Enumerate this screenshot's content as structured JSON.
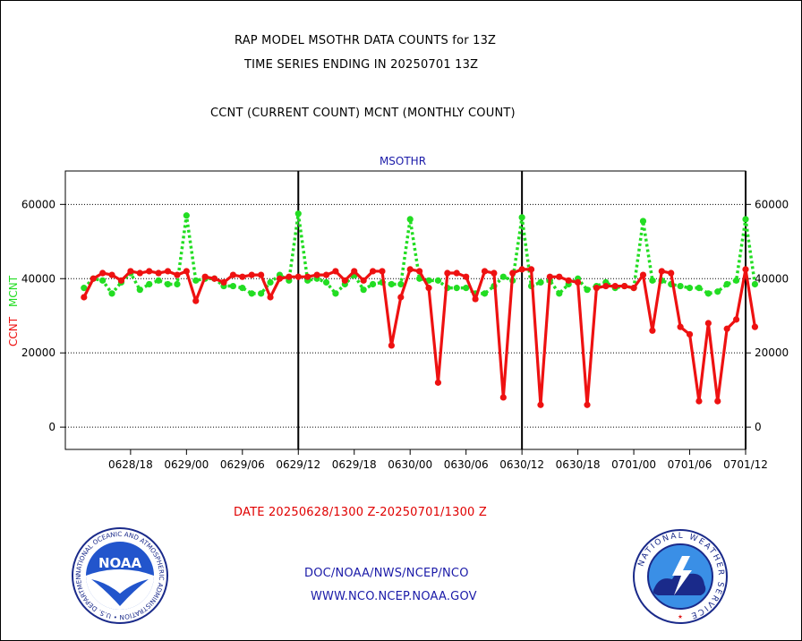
{
  "title_line1": "RAP MODEL MSOTHR DATA COUNTS for 13Z",
  "title_line2": "TIME SERIES ENDING IN 20250701 13Z",
  "title_line3": "CCNT (CURRENT COUNT) MCNT (MONTHLY COUNT)",
  "date_range": "DATE 20250628/1300 Z-20250701/1300 Z",
  "credit_line1": "DOC/NOAA/NWS/NCEP/NCO",
  "credit_line2": "WWW.NCO.NCEP.NOAA.GOV",
  "noaa_logo": {
    "center_text": "NOAA",
    "ring_text": "NATIONAL OCEANIC AND ATMOSPHERIC ADMINISTRATION • U.S. DEPARTMENT OF COMMERCE •"
  },
  "nws_logo": {
    "ring_text": "NATIONAL WEATHER SERVICE"
  },
  "colors": {
    "ccnt": "#ee1111",
    "mcnt": "#22dd22",
    "panel_label": "#1a1aa8",
    "grid": "#000000"
  },
  "chart_data": {
    "type": "line",
    "panel_label": "MSOTHR",
    "ylabel_left": "CCNT",
    "ylabel_left_second": "MCNT",
    "yticks": [
      "0",
      "20000",
      "40000",
      "60000"
    ],
    "ylim": [
      -6000,
      69000
    ],
    "xticks": [
      "0628/18",
      "0629/00",
      "0629/06",
      "0629/12",
      "0629/18",
      "0630/00",
      "0630/06",
      "0630/12",
      "0630/18",
      "0701/00",
      "0701/06",
      "0701/12"
    ],
    "xlim_hours": [
      -2,
      71
    ],
    "x_start": "2025-06-28 13Z",
    "grid": "horizontal dotted at 0, 20000, 40000, 60000; vertical lines at each 12Z",
    "vertical_lines_hours": [
      23,
      47,
      71
    ],
    "series": [
      {
        "name": "CCNT",
        "color": "#ee1111",
        "style": "solid",
        "values": [
          35000,
          40000,
          41500,
          41000,
          39500,
          42000,
          41500,
          42000,
          41500,
          42000,
          41000,
          42000,
          34000,
          40500,
          40000,
          39000,
          41000,
          40500,
          41000,
          41000,
          35000,
          40000,
          40500,
          40500,
          40500,
          41000,
          41000,
          42000,
          39500,
          42000,
          39500,
          42000,
          42000,
          22000,
          35000,
          42500,
          42000,
          37500,
          12000,
          41500,
          41500,
          40500,
          34500,
          42000,
          41500,
          8000,
          41500,
          42500,
          42500,
          6000,
          40500,
          40500,
          39500,
          39000,
          6000,
          37500,
          38000,
          38000,
          38000,
          37500,
          41000,
          26000,
          42000,
          41500,
          27000,
          25000,
          7000,
          28000,
          7000,
          26500,
          29000,
          42500,
          27000
        ]
      },
      {
        "name": "MCNT",
        "color": "#22dd22",
        "style": "dotted",
        "values": [
          37500,
          40000,
          39500,
          36000,
          39000,
          41500,
          37000,
          38500,
          39500,
          38500,
          38500,
          57000,
          39500,
          40000,
          40000,
          38000,
          38000,
          37500,
          36000,
          36000,
          39000,
          41000,
          39500,
          57500,
          39500,
          40000,
          39000,
          36000,
          38500,
          41000,
          37000,
          38500,
          39000,
          38500,
          38500,
          56000,
          40000,
          39500,
          39500,
          37500,
          37500,
          37500,
          36000,
          36000,
          38000,
          40500,
          39500,
          56500,
          38000,
          39000,
          39500,
          36000,
          38500,
          40000,
          37000,
          38000,
          39000,
          37500,
          38000,
          37500,
          55500,
          39500,
          39500,
          38500,
          38000,
          37500,
          37500,
          36000,
          36500,
          38500,
          39500,
          56000,
          38500
        ]
      }
    ]
  }
}
